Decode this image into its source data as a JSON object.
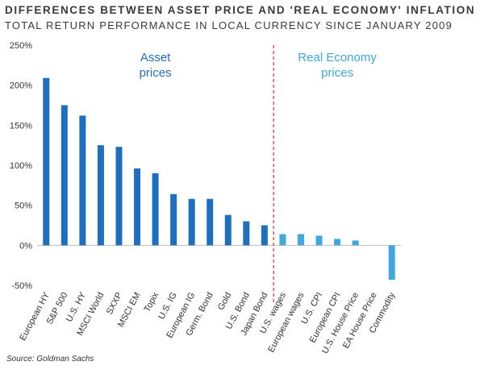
{
  "title": "DIFFERENCES BETWEEN ASSET PRICE AND 'REAL ECONOMY' INFLATION",
  "subtitle": "TOTAL RETURN PERFORMANCE IN LOCAL CURRENCY SINCE JANUARY 2009",
  "source": "Source: Goldman Sachs",
  "chart_data": {
    "type": "bar",
    "title": "DIFFERENCES BETWEEN ASSET PRICE AND 'REAL ECONOMY' INFLATION",
    "subtitle": "TOTAL RETURN PERFORMANCE IN LOCAL CURRENCY SINCE JANUARY 2009",
    "xlabel": "",
    "ylabel": "",
    "ylim": [
      -50,
      250
    ],
    "yticks": [
      -50,
      0,
      50,
      100,
      150,
      200,
      250
    ],
    "ytick_labels": [
      "-50%",
      "0%",
      "50%",
      "100%",
      "150%",
      "200%",
      "250%"
    ],
    "grid": false,
    "groups": [
      {
        "label_lines": [
          "Asset",
          "prices"
        ],
        "color": "#1f6fc0"
      },
      {
        "label_lines": [
          "Real Economy",
          "prices"
        ],
        "color": "#3fa8dc"
      }
    ],
    "categories": [
      "European HY",
      "S&P 500",
      "U.S. HY",
      "MSCI World",
      "SXXP",
      "MSCI EM",
      "Topix",
      "U.S. IG",
      "European IG",
      "Germ. Bond",
      "Gold",
      "U.S. Bond",
      "Japan Bond",
      "U.S. wages",
      "European wages",
      "U.S. CPI",
      "European CPI",
      "U.S. House Price",
      "EA House Price",
      "Commodity"
    ],
    "values": [
      209,
      175,
      162,
      125,
      123,
      96,
      90,
      64,
      58,
      58,
      38,
      30,
      25,
      14,
      14,
      12,
      8,
      6,
      0,
      -43
    ],
    "group_index": [
      0,
      0,
      0,
      0,
      0,
      0,
      0,
      0,
      0,
      0,
      0,
      0,
      0,
      1,
      1,
      1,
      1,
      1,
      1,
      1
    ],
    "divider": "dashed red line between Japan Bond and U.S. wages"
  }
}
